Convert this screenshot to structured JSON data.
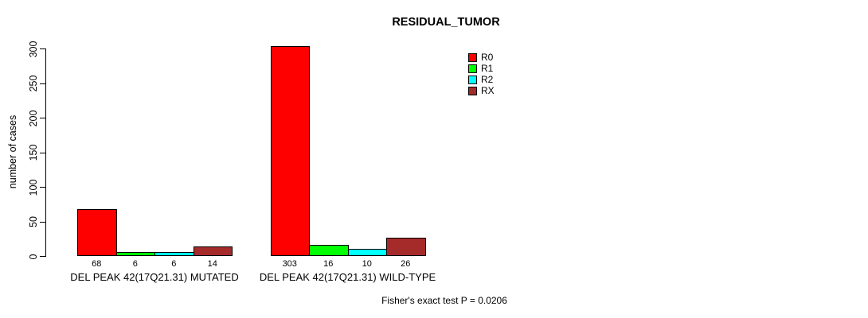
{
  "chart_data": {
    "type": "bar",
    "title": "RESIDUAL_TUMOR",
    "xlabel": "",
    "ylabel": "number of cases",
    "ylim": [
      0,
      300
    ],
    "yticks": [
      0,
      50,
      100,
      150,
      200,
      250,
      300
    ],
    "grid": false,
    "legend_position": "top-right",
    "categories": [
      "DEL PEAK 42(17Q21.31) MUTATED",
      "DEL PEAK 42(17Q21.31) WILD-TYPE"
    ],
    "series": [
      {
        "name": "R0",
        "color": "#FF0000",
        "values": [
          68,
          303
        ]
      },
      {
        "name": "R1",
        "color": "#00FF00",
        "values": [
          6,
          16
        ]
      },
      {
        "name": "R2",
        "color": "#00FFFF",
        "values": [
          6,
          10
        ]
      },
      {
        "name": "RX",
        "color": "#A52A2A",
        "values": [
          14,
          26
        ]
      }
    ],
    "bar_value_labels": {
      "DEL PEAK 42(17Q21.31) MUTATED": [
        "68",
        "6",
        "6",
        "14"
      ],
      "DEL PEAK 42(17Q21.31) WILD-TYPE": [
        "303",
        "16",
        "10",
        "26"
      ]
    },
    "annotation": "Fisher's exact test P = 0.0206"
  }
}
